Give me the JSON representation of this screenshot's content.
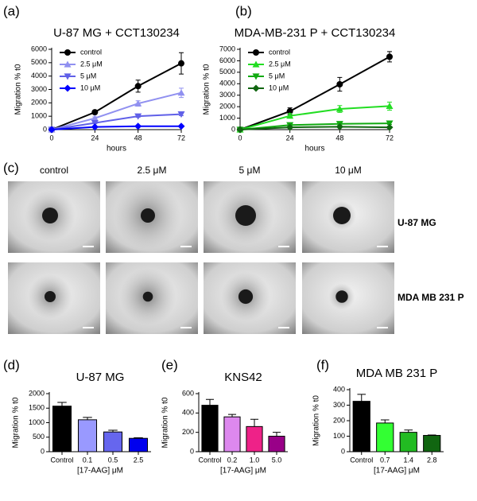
{
  "figure": {
    "panel_labels": [
      "(a)",
      "(b)",
      "(c)",
      "(d)",
      "(e)",
      "(f)"
    ],
    "image_columns": [
      "control",
      "2.5 μM",
      "5 μM",
      "10 μM"
    ],
    "image_rows": [
      "U-87 MG",
      "MDA MB 231 P"
    ]
  },
  "chart_data": [
    {
      "type": "line",
      "title": "U-87 MG + CCT130234",
      "x_label": "hours",
      "y_label": "Migration % t0",
      "x": [
        0,
        24,
        48,
        72
      ],
      "xlim": [
        0,
        72
      ],
      "xticks": [
        0,
        24,
        48,
        72
      ],
      "ylim": [
        0,
        6000
      ],
      "yticks": [
        0,
        1000,
        2000,
        3000,
        4000,
        5000,
        6000
      ],
      "legend": "top-left",
      "series": [
        {
          "name": "control",
          "color": "#000000",
          "marker": "circle",
          "values": [
            0,
            1300,
            3250,
            4950
          ],
          "errors": [
            0,
            100,
            450,
            800
          ]
        },
        {
          "name": "2.5 μM",
          "color": "#9090f0",
          "marker": "triangle-up",
          "values": [
            0,
            850,
            1950,
            2750
          ],
          "errors": [
            0,
            100,
            200,
            350
          ]
        },
        {
          "name": "5 μM",
          "color": "#6060e8",
          "marker": "triangle-down",
          "values": [
            0,
            500,
            1000,
            1150
          ],
          "errors": [
            0,
            60,
            80,
            100
          ]
        },
        {
          "name": "10 μM",
          "color": "#0000ff",
          "marker": "diamond",
          "values": [
            0,
            200,
            250,
            250
          ],
          "errors": [
            0,
            30,
            30,
            30
          ]
        }
      ]
    },
    {
      "type": "line",
      "title": "MDA-MB-231 P + CCT130234",
      "x_label": "hours",
      "y_label": "Migration % t0",
      "x": [
        0,
        24,
        48,
        72
      ],
      "xlim": [
        0,
        72
      ],
      "xticks": [
        0,
        24,
        48,
        72
      ],
      "ylim": [
        0,
        7000
      ],
      "yticks": [
        0,
        1000,
        2000,
        3000,
        4000,
        5000,
        6000,
        7000
      ],
      "legend": "top-left",
      "series": [
        {
          "name": "control",
          "color": "#000000",
          "marker": "circle",
          "values": [
            0,
            1600,
            3950,
            6350
          ],
          "errors": [
            0,
            300,
            600,
            450
          ]
        },
        {
          "name": "2.5 μM",
          "color": "#22dd22",
          "marker": "triangle-up",
          "values": [
            0,
            1200,
            1800,
            2050
          ],
          "errors": [
            0,
            200,
            300,
            350
          ]
        },
        {
          "name": "5 μM",
          "color": "#11aa11",
          "marker": "triangle-down",
          "values": [
            0,
            400,
            500,
            550
          ],
          "errors": [
            0,
            80,
            100,
            100
          ]
        },
        {
          "name": "10 μM",
          "color": "#116611",
          "marker": "diamond",
          "values": [
            0,
            200,
            250,
            200
          ],
          "errors": [
            0,
            50,
            50,
            50
          ]
        }
      ]
    },
    {
      "type": "bar",
      "title": "U-87 MG",
      "x_label": "[17-AAG] μM",
      "y_label": "Migration % t0",
      "categories": [
        "Control",
        "0.1",
        "0.5",
        "2.5"
      ],
      "values": [
        1570,
        1100,
        680,
        460
      ],
      "errors": [
        130,
        80,
        60,
        20
      ],
      "colors": [
        "#000000",
        "#9999ff",
        "#6666ee",
        "#0000ee"
      ],
      "ylim": [
        0,
        2000
      ],
      "yticks": [
        0,
        500,
        1000,
        1500,
        2000
      ]
    },
    {
      "type": "bar",
      "title": "KNS42",
      "x_label": "[17-AAG] μM",
      "y_label": "Migration % t0",
      "categories": [
        "Control",
        "0.2",
        "1.0",
        "5.0"
      ],
      "values": [
        480,
        360,
        260,
        160
      ],
      "errors": [
        60,
        25,
        75,
        40
      ],
      "colors": [
        "#000000",
        "#dd88ee",
        "#ee2288",
        "#990088"
      ],
      "ylim": [
        0,
        600
      ],
      "yticks": [
        0,
        200,
        400,
        600
      ]
    },
    {
      "type": "bar",
      "title": "MDA MB 231 P",
      "x_label": "[17-AAG] μM",
      "y_label": "Migration % t0",
      "categories": [
        "Control",
        "0.7",
        "1.4",
        "2.8"
      ],
      "values": [
        325,
        185,
        125,
        105
      ],
      "errors": [
        45,
        20,
        15,
        3
      ],
      "colors": [
        "#000000",
        "#33ff33",
        "#22bb22",
        "#116611"
      ],
      "ylim": [
        0,
        400
      ],
      "yticks": [
        0,
        100,
        200,
        300,
        400
      ]
    }
  ]
}
